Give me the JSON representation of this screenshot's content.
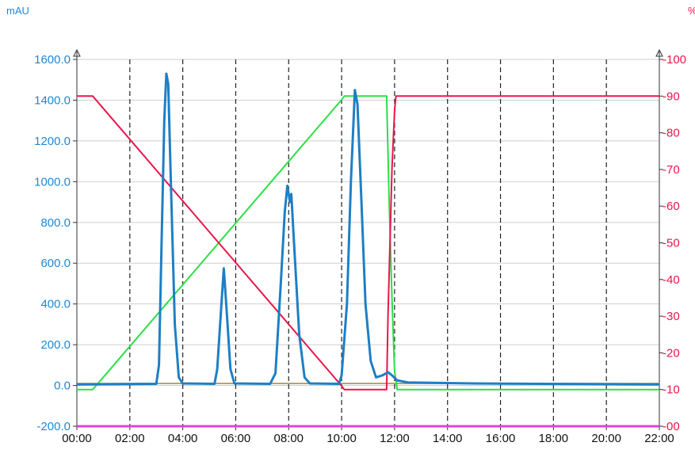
{
  "chart_data": {
    "type": "line",
    "left_axis": {
      "unit": "mAU",
      "color": "#1E88D2",
      "range": [
        -200,
        1600
      ],
      "ticks": [
        "-200.0",
        "0.0",
        "200.0",
        "400.0",
        "600.0",
        "800.0",
        "1000.0",
        "1200.0",
        "1400.0",
        "1600.0"
      ],
      "tick_values": [
        -200,
        0,
        200,
        400,
        600,
        800,
        1000,
        1200,
        1400,
        1600
      ]
    },
    "right_axis": {
      "unit": "%",
      "color": "#E8164A",
      "range": [
        0,
        100
      ],
      "ticks": [
        "00",
        "10",
        "20",
        "30",
        "40",
        "50",
        "60",
        "70",
        "80",
        "90",
        "100"
      ],
      "tick_values": [
        0,
        10,
        20,
        30,
        40,
        50,
        60,
        70,
        80,
        90,
        100
      ]
    },
    "x_axis": {
      "range": [
        0,
        22
      ],
      "ticks": [
        "00:00",
        "02:00",
        "04:00",
        "06:00",
        "08:00",
        "10:00",
        "12:00",
        "14:00",
        "16:00",
        "18:00",
        "20:00",
        "22:00"
      ],
      "tick_values": [
        0,
        2,
        4,
        6,
        8,
        10,
        12,
        14,
        16,
        18,
        20,
        22
      ],
      "gridlines": "dashed vertical every 2 min"
    },
    "series": [
      {
        "color": "#1E7FC4",
        "axis": "left",
        "points": [
          [
            0,
            5
          ],
          [
            3.0,
            8
          ],
          [
            3.1,
            100
          ],
          [
            3.2,
            700
          ],
          [
            3.3,
            1300
          ],
          [
            3.38,
            1530
          ],
          [
            3.45,
            1480
          ],
          [
            3.55,
            1000
          ],
          [
            3.7,
            300
          ],
          [
            3.85,
            40
          ],
          [
            4.0,
            10
          ],
          [
            5.2,
            8
          ],
          [
            5.3,
            80
          ],
          [
            5.45,
            380
          ],
          [
            5.55,
            575
          ],
          [
            5.65,
            380
          ],
          [
            5.8,
            80
          ],
          [
            5.95,
            10
          ],
          [
            7.3,
            8
          ],
          [
            7.5,
            60
          ],
          [
            7.7,
            500
          ],
          [
            7.85,
            850
          ],
          [
            7.95,
            980
          ],
          [
            8.05,
            900
          ],
          [
            8.1,
            940
          ],
          [
            8.2,
            700
          ],
          [
            8.4,
            250
          ],
          [
            8.6,
            40
          ],
          [
            8.8,
            10
          ],
          [
            9.9,
            8
          ],
          [
            10.0,
            50
          ],
          [
            10.2,
            400
          ],
          [
            10.35,
            1000
          ],
          [
            10.5,
            1450
          ],
          [
            10.6,
            1380
          ],
          [
            10.75,
            900
          ],
          [
            10.9,
            400
          ],
          [
            11.1,
            120
          ],
          [
            11.3,
            40
          ],
          [
            11.55,
            50
          ],
          [
            11.75,
            65
          ],
          [
            11.9,
            50
          ],
          [
            12.1,
            25
          ],
          [
            12.5,
            15
          ],
          [
            15.0,
            10
          ],
          [
            22,
            5
          ]
        ]
      },
      {
        "color": "#E8164A",
        "axis": "right",
        "points": [
          [
            0,
            90
          ],
          [
            0.6,
            90
          ],
          [
            10.0,
            11
          ],
          [
            10.1,
            10
          ],
          [
            11.7,
            10
          ],
          [
            11.75,
            30
          ],
          [
            11.9,
            70
          ],
          [
            12.0,
            86
          ],
          [
            12.05,
            90
          ],
          [
            22,
            90
          ]
        ]
      },
      {
        "color": "#2AE045",
        "axis": "right",
        "points": [
          [
            0,
            10
          ],
          [
            0.6,
            10
          ],
          [
            10.0,
            89
          ],
          [
            10.1,
            90
          ],
          [
            11.7,
            90
          ],
          [
            11.8,
            60
          ],
          [
            11.9,
            35
          ],
          [
            12.0,
            15
          ],
          [
            12.1,
            10
          ],
          [
            22,
            10
          ]
        ]
      },
      {
        "color": "#9A8A3A",
        "axis": "left",
        "points": [
          [
            0,
            10
          ],
          [
            22,
            10
          ]
        ]
      },
      {
        "color": "#E040E0",
        "axis": "right",
        "points": [
          [
            0,
            0
          ],
          [
            22,
            0
          ]
        ]
      }
    ]
  }
}
